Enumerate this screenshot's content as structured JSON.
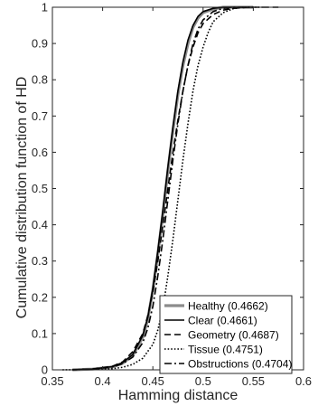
{
  "chart_data": {
    "type": "line",
    "title": "",
    "xlabel": "Hamming distance",
    "ylabel": "Cumulative distribution function of HD",
    "xlim": [
      0.35,
      0.6
    ],
    "ylim": [
      0,
      1
    ],
    "xticks": [
      0.35,
      0.4,
      0.45,
      0.5,
      0.55,
      0.6
    ],
    "xtick_labels": [
      "0.35",
      "0.4",
      "0.45",
      "0.5",
      "0.55",
      "0.6"
    ],
    "yticks": [
      0,
      0.1,
      0.2,
      0.3,
      0.4,
      0.5,
      0.6,
      0.7,
      0.8,
      0.9,
      1
    ],
    "ytick_labels": [
      "0",
      "0.1",
      "0.2",
      "0.3",
      "0.4",
      "0.5",
      "0.6",
      "0.7",
      "0.8",
      "0.9",
      "1"
    ],
    "grid": false,
    "legend_position": "bottom-right",
    "series": [
      {
        "name": "Healthy (0.4662)",
        "color": "#8c8c8c",
        "line_style": "solid-thick",
        "points": [
          [
            0.37,
            0
          ],
          [
            0.39,
            0.002
          ],
          [
            0.41,
            0.008
          ],
          [
            0.42,
            0.018
          ],
          [
            0.43,
            0.04
          ],
          [
            0.44,
            0.09
          ],
          [
            0.445,
            0.14
          ],
          [
            0.45,
            0.22
          ],
          [
            0.455,
            0.32
          ],
          [
            0.46,
            0.43
          ],
          [
            0.465,
            0.55
          ],
          [
            0.47,
            0.66
          ],
          [
            0.475,
            0.76
          ],
          [
            0.48,
            0.84
          ],
          [
            0.485,
            0.9
          ],
          [
            0.49,
            0.945
          ],
          [
            0.495,
            0.97
          ],
          [
            0.5,
            0.985
          ],
          [
            0.51,
            0.995
          ],
          [
            0.52,
            1
          ],
          [
            0.55,
            1
          ]
        ]
      },
      {
        "name": "Clear (0.4661)",
        "color": "#000000",
        "line_style": "solid",
        "points": [
          [
            0.37,
            0
          ],
          [
            0.39,
            0.002
          ],
          [
            0.41,
            0.009
          ],
          [
            0.42,
            0.02
          ],
          [
            0.43,
            0.042
          ],
          [
            0.44,
            0.095
          ],
          [
            0.445,
            0.145
          ],
          [
            0.45,
            0.225
          ],
          [
            0.455,
            0.33
          ],
          [
            0.46,
            0.44
          ],
          [
            0.465,
            0.56
          ],
          [
            0.47,
            0.67
          ],
          [
            0.475,
            0.77
          ],
          [
            0.48,
            0.85
          ],
          [
            0.485,
            0.91
          ],
          [
            0.49,
            0.95
          ],
          [
            0.495,
            0.975
          ],
          [
            0.5,
            0.988
          ],
          [
            0.51,
            0.997
          ],
          [
            0.52,
            1
          ],
          [
            0.55,
            1
          ]
        ]
      },
      {
        "name": "Geometry (0.4687)",
        "color": "#000000",
        "line_style": "dashed",
        "points": [
          [
            0.37,
            0
          ],
          [
            0.39,
            0.002
          ],
          [
            0.41,
            0.01
          ],
          [
            0.42,
            0.022
          ],
          [
            0.43,
            0.05
          ],
          [
            0.44,
            0.1
          ],
          [
            0.445,
            0.15
          ],
          [
            0.45,
            0.215
          ],
          [
            0.455,
            0.3
          ],
          [
            0.46,
            0.4
          ],
          [
            0.465,
            0.5
          ],
          [
            0.47,
            0.6
          ],
          [
            0.475,
            0.69
          ],
          [
            0.48,
            0.77
          ],
          [
            0.485,
            0.84
          ],
          [
            0.49,
            0.89
          ],
          [
            0.495,
            0.93
          ],
          [
            0.5,
            0.955
          ],
          [
            0.51,
            0.98
          ],
          [
            0.52,
            0.992
          ],
          [
            0.53,
            0.997
          ],
          [
            0.545,
            1
          ],
          [
            0.575,
            1
          ]
        ]
      },
      {
        "name": "Tissue (0.4751)",
        "color": "#000000",
        "line_style": "dotted",
        "points": [
          [
            0.36,
            0
          ],
          [
            0.39,
            0.001
          ],
          [
            0.41,
            0.003
          ],
          [
            0.42,
            0.007
          ],
          [
            0.43,
            0.015
          ],
          [
            0.44,
            0.032
          ],
          [
            0.45,
            0.07
          ],
          [
            0.455,
            0.11
          ],
          [
            0.46,
            0.17
          ],
          [
            0.465,
            0.26
          ],
          [
            0.47,
            0.36
          ],
          [
            0.475,
            0.47
          ],
          [
            0.48,
            0.58
          ],
          [
            0.485,
            0.68
          ],
          [
            0.49,
            0.77
          ],
          [
            0.495,
            0.84
          ],
          [
            0.5,
            0.89
          ],
          [
            0.505,
            0.93
          ],
          [
            0.51,
            0.96
          ],
          [
            0.52,
            0.985
          ],
          [
            0.53,
            0.996
          ],
          [
            0.54,
            1
          ],
          [
            0.56,
            1
          ]
        ]
      },
      {
        "name": "Obstructions (0.4704)",
        "color": "#000000",
        "line_style": "dash-dot",
        "points": [
          [
            0.37,
            0
          ],
          [
            0.39,
            0.002
          ],
          [
            0.41,
            0.008
          ],
          [
            0.42,
            0.017
          ],
          [
            0.43,
            0.035
          ],
          [
            0.44,
            0.075
          ],
          [
            0.445,
            0.115
          ],
          [
            0.45,
            0.175
          ],
          [
            0.455,
            0.26
          ],
          [
            0.46,
            0.36
          ],
          [
            0.465,
            0.47
          ],
          [
            0.47,
            0.58
          ],
          [
            0.475,
            0.68
          ],
          [
            0.48,
            0.77
          ],
          [
            0.485,
            0.84
          ],
          [
            0.49,
            0.9
          ],
          [
            0.495,
            0.94
          ],
          [
            0.5,
            0.965
          ],
          [
            0.51,
            0.988
          ],
          [
            0.52,
            0.997
          ],
          [
            0.53,
            1
          ],
          [
            0.55,
            1
          ]
        ]
      }
    ]
  }
}
